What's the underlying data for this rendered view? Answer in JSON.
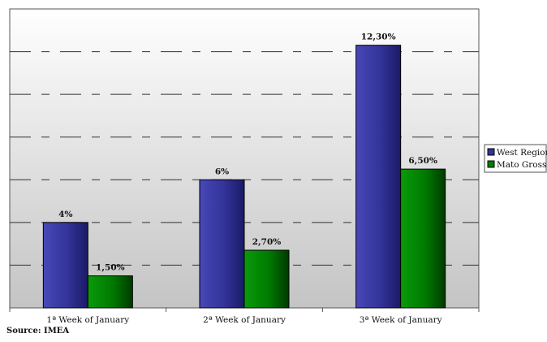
{
  "chart_data": {
    "type": "bar",
    "categories": [
      "1ª Week of January",
      "2ª  Week of January",
      "3ª  Week of January"
    ],
    "series": [
      {
        "name": "West Region",
        "values": [
          4,
          6,
          12.3
        ],
        "labels": [
          "4%",
          "6%",
          "12,30%"
        ]
      },
      {
        "name": "Mato Grosso",
        "values": [
          1.5,
          2.7,
          6.5
        ],
        "labels": [
          "1,50%",
          "2,70%",
          "6,50%"
        ]
      }
    ],
    "ylim": [
      0,
      14
    ],
    "grid": true,
    "legend_position": "right",
    "colors": {
      "west_region": "#333399",
      "mato_grosso": "#008000",
      "plot_background": "#c8c8c8"
    }
  },
  "source": "Source: IMEA"
}
